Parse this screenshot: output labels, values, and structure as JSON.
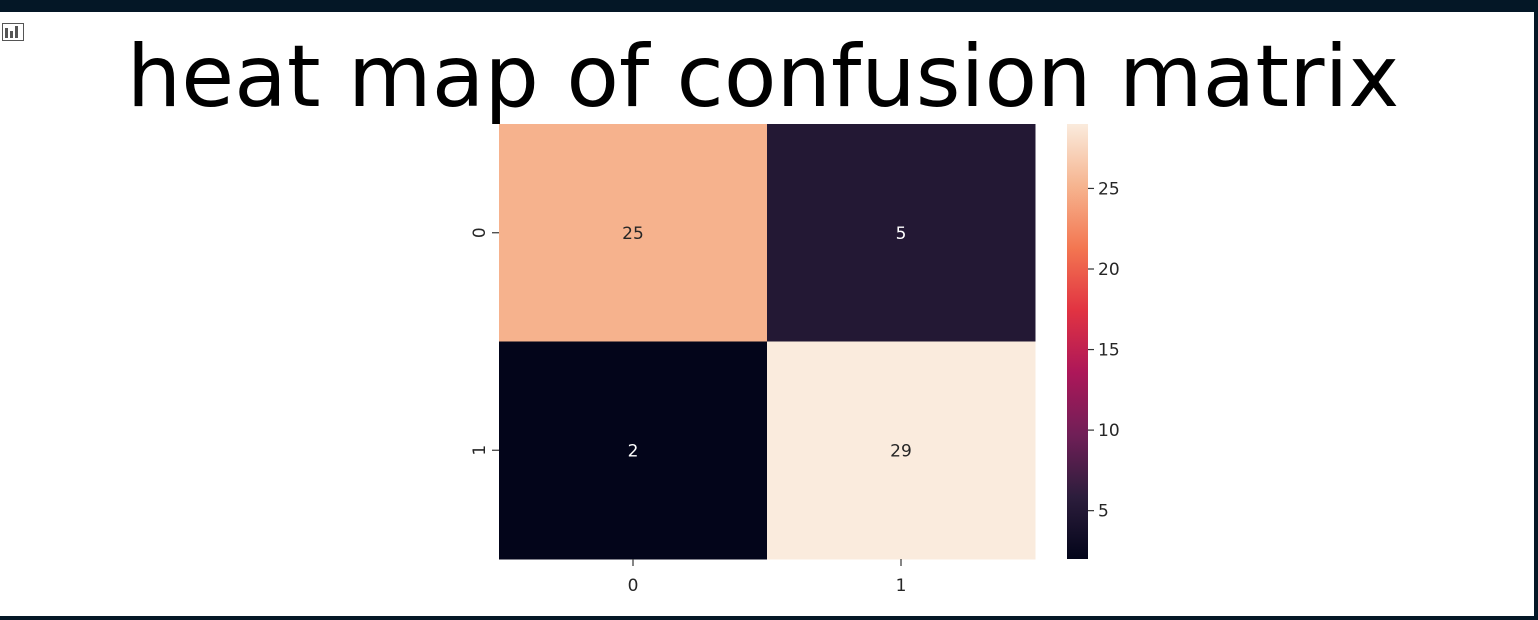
{
  "chart_data": {
    "type": "heatmap",
    "title": "heat map of confusion matrix",
    "x_tick_labels": [
      "0",
      "1"
    ],
    "y_tick_labels": [
      "0",
      "1"
    ],
    "matrix": [
      [
        25,
        5
      ],
      [
        2,
        29
      ]
    ],
    "cell_labels": [
      [
        "25",
        "5"
      ],
      [
        "2",
        "29"
      ]
    ],
    "colorbar": {
      "vmin": 2,
      "vmax": 29,
      "ticks": [
        5,
        10,
        15,
        20,
        25
      ],
      "tick_labels": [
        "5",
        "10",
        "15",
        "20",
        "25"
      ],
      "colormap": "rocket",
      "colormap_stops": [
        "#03051a",
        "#2c1d3c",
        "#701f57",
        "#ad1759",
        "#e13342",
        "#f37651",
        "#f6b48f",
        "#faebdd"
      ]
    },
    "grid": false,
    "legend": "colorbar-right"
  },
  "icons": {
    "corner": "chart-icon"
  }
}
